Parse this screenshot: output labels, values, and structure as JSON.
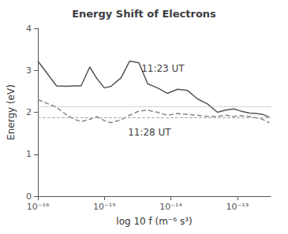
{
  "chart_data": {
    "type": "line",
    "title": "Energy Shift of Electrons",
    "xlabel": "log 10 f (m⁻⁶ s³)",
    "ylabel": "Energy (eV)",
    "log": "x",
    "grid": false,
    "background_color": "#ffffff",
    "xlim": [
      1e-16,
      3.162278e-13
    ],
    "xticks": [
      {
        "value": 1e-16,
        "label": "10⁻¹⁶"
      },
      {
        "value": 1e-15,
        "label": "10⁻¹⁵"
      },
      {
        "value": 1e-14,
        "label": "10⁻¹⁴"
      },
      {
        "value": 1e-13,
        "label": "10⁻¹³"
      }
    ],
    "ylim": [
      0,
      4
    ],
    "yticks": [
      0,
      1,
      2,
      3,
      4
    ],
    "x": [
      1e-16,
      1.905461e-16,
      2.630268e-16,
      3.548134e-16,
      4.466836e-16,
      6.025596e-16,
      7.585776e-16,
      1e-15,
      1.258925e-15,
      1.778279e-15,
      2.398833e-15,
      3.311311e-15,
      4.466836e-15,
      6.309573e-15,
      8.912509e-15,
      1.258925e-14,
      1.778279e-14,
      2.511886e-14,
      3.548134e-14,
      5.011872e-14,
      6.606934e-14,
      8.912509e-14,
      1.122018e-13,
      1.513561e-13,
      1.905461e-13,
      2.398833e-13,
      3.019952e-13
    ],
    "series": [
      {
        "color": "#555555",
        "line_style": "solid",
        "values": [
          3.22,
          2.63,
          2.62,
          2.63,
          2.63,
          3.08,
          2.82,
          2.58,
          2.62,
          2.82,
          3.22,
          3.18,
          2.68,
          2.58,
          2.45,
          2.55,
          2.52,
          2.32,
          2.2,
          2.0,
          2.05,
          2.08,
          2.03,
          1.98,
          1.97,
          1.95,
          1.88
        ]
      },
      {
        "color": "#888888",
        "line_style": "dashed",
        "values": [
          2.3,
          2.12,
          1.95,
          1.83,
          1.78,
          1.83,
          1.9,
          1.8,
          1.75,
          1.82,
          1.93,
          2.03,
          2.05,
          2.0,
          1.93,
          1.97,
          1.95,
          1.93,
          1.9,
          1.9,
          1.93,
          1.9,
          1.92,
          1.9,
          1.87,
          1.83,
          1.75
        ]
      }
    ],
    "reference_lines": [
      {
        "value": 2.13,
        "line_style": "dotted",
        "color": "#aaaaaa"
      },
      {
        "value": 1.88,
        "line_style": "dashed",
        "color": "#aaaaaa"
      }
    ],
    "annotations": [
      {
        "text": "11:23 UT",
        "x": 3.5e-15,
        "y": 3.05
      },
      {
        "text": "11:28 UT",
        "x": 2.2e-15,
        "y": 1.53
      }
    ]
  }
}
